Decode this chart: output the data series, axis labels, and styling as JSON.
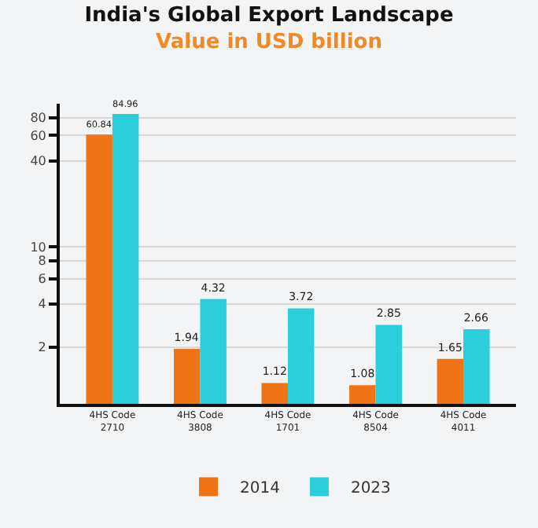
{
  "chart_data": {
    "type": "bar",
    "title": "India's Global Export Landscape",
    "subtitle": "Value in USD billion",
    "categories": [
      "4HS Code\n2710",
      "4HS Code\n3808",
      "4HS Code\n1701",
      "4HS Code\n8504",
      "4HS Code\n4011"
    ],
    "series": [
      {
        "name": "2014",
        "color": "#f07315",
        "values": [
          60.84,
          1.94,
          1.12,
          1.08,
          1.65
        ]
      },
      {
        "name": "2023",
        "color": "#2ccfd9",
        "values": [
          84.96,
          4.32,
          3.72,
          2.85,
          2.66
        ]
      }
    ],
    "log": true,
    "ylim": [
      0.8,
      100
    ],
    "yticks": [
      2,
      4,
      6,
      8,
      10,
      40,
      60,
      80
    ],
    "data_labels": true,
    "grid": "y",
    "legend": "bottom"
  }
}
